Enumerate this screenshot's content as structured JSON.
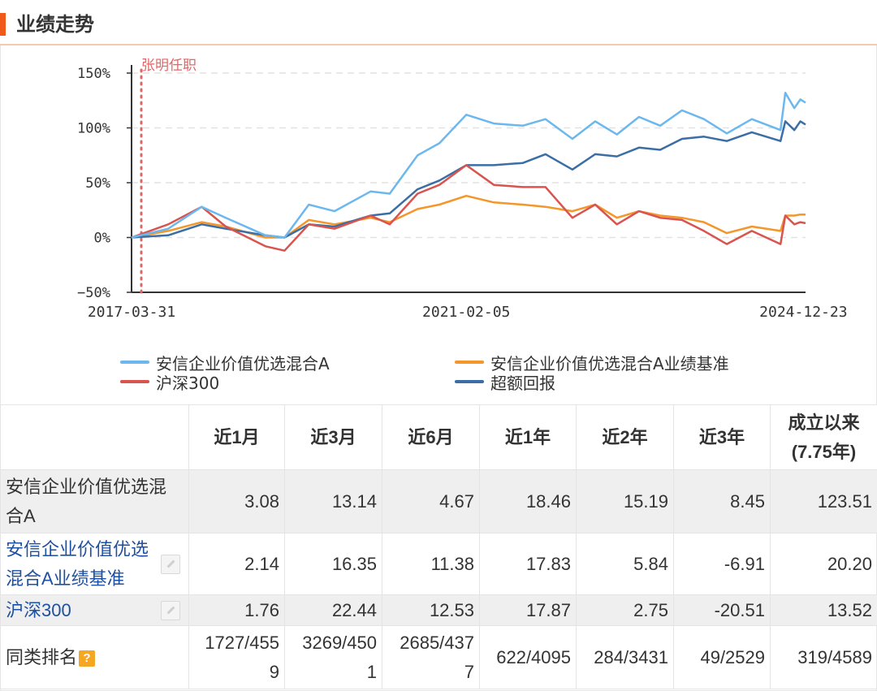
{
  "section_title": "业绩走势",
  "chart_data": {
    "type": "line",
    "x_ticks": [
      "2017-03-31",
      "2021-02-05",
      "2024-12-23"
    ],
    "x_range": [
      "2017-03-31",
      "2025-01-01"
    ],
    "ylim": [
      -50,
      150
    ],
    "y_ticks": [
      -50,
      0,
      50,
      100,
      150
    ],
    "y_tick_labels": [
      "−50%",
      "0%",
      "50%",
      "100%",
      "150%"
    ],
    "annotation": {
      "label": "张明任职",
      "x": "2017-03-31",
      "color": "#e06666"
    },
    "grid": "horizontal dashed",
    "series": [
      {
        "name": "安信企业价值优选混合A",
        "color": "#6cb8ee",
        "x": [
          "2017-03-31",
          "2017-09-01",
          "2018-01-20",
          "2018-05-01",
          "2018-10-15",
          "2019-01-03",
          "2019-04-15",
          "2019-08-01",
          "2019-12-31",
          "2020-03-20",
          "2020-07-15",
          "2020-10-15",
          "2021-02-05",
          "2021-06-01",
          "2021-10-01",
          "2022-01-04",
          "2022-04-27",
          "2022-08-01",
          "2022-10-31",
          "2023-02-01",
          "2023-05-01",
          "2023-08-01",
          "2023-11-01",
          "2024-02-05",
          "2024-05-20",
          "2024-09-18",
          "2024-10-08",
          "2024-11-15",
          "2024-12-10",
          "2025-01-01"
        ],
        "values": [
          0,
          8,
          28,
          18,
          2,
          0,
          30,
          24,
          42,
          40,
          75,
          86,
          112,
          104,
          102,
          108,
          90,
          106,
          94,
          110,
          102,
          116,
          108,
          95,
          108,
          98,
          132,
          118,
          126,
          123
        ]
      },
      {
        "name": "安信企业价值优选混合A业绩基准",
        "color": "#f5962a",
        "x": [
          "2017-03-31",
          "2017-09-01",
          "2018-01-20",
          "2018-05-01",
          "2018-10-15",
          "2019-01-03",
          "2019-04-15",
          "2019-08-01",
          "2019-12-31",
          "2020-03-20",
          "2020-07-15",
          "2020-10-15",
          "2021-02-05",
          "2021-06-01",
          "2021-10-01",
          "2022-01-04",
          "2022-04-27",
          "2022-08-01",
          "2022-10-31",
          "2023-02-01",
          "2023-05-01",
          "2023-08-01",
          "2023-11-01",
          "2024-02-05",
          "2024-05-20",
          "2024-09-18",
          "2024-10-08",
          "2024-11-15",
          "2024-12-10",
          "2025-01-01"
        ],
        "values": [
          0,
          6,
          14,
          10,
          0,
          0,
          16,
          12,
          18,
          14,
          26,
          30,
          38,
          32,
          30,
          28,
          24,
          30,
          18,
          24,
          20,
          18,
          14,
          4,
          10,
          6,
          20,
          20,
          21,
          21
        ]
      },
      {
        "name": "沪深300",
        "color": "#d9534f",
        "x": [
          "2017-03-31",
          "2017-09-01",
          "2018-01-20",
          "2018-05-01",
          "2018-10-15",
          "2019-01-03",
          "2019-04-15",
          "2019-08-01",
          "2019-12-31",
          "2020-03-20",
          "2020-07-15",
          "2020-10-15",
          "2021-02-05",
          "2021-06-01",
          "2021-10-01",
          "2022-01-04",
          "2022-04-27",
          "2022-08-01",
          "2022-10-31",
          "2023-02-01",
          "2023-05-01",
          "2023-08-01",
          "2023-11-01",
          "2024-02-05",
          "2024-05-20",
          "2024-09-18",
          "2024-10-08",
          "2024-11-15",
          "2024-12-10",
          "2025-01-01"
        ],
        "values": [
          0,
          12,
          28,
          10,
          -8,
          -12,
          12,
          8,
          20,
          12,
          40,
          48,
          66,
          48,
          46,
          46,
          18,
          30,
          12,
          24,
          18,
          16,
          6,
          -6,
          6,
          -6,
          20,
          12,
          14,
          13
        ]
      },
      {
        "name": "超额回报",
        "color": "#3a6ea5",
        "x": [
          "2017-03-31",
          "2017-09-01",
          "2018-01-20",
          "2018-05-01",
          "2018-10-15",
          "2019-01-03",
          "2019-04-15",
          "2019-08-01",
          "2019-12-31",
          "2020-03-20",
          "2020-07-15",
          "2020-10-15",
          "2021-02-05",
          "2021-06-01",
          "2021-10-01",
          "2022-01-04",
          "2022-04-27",
          "2022-08-01",
          "2022-10-31",
          "2023-02-01",
          "2023-05-01",
          "2023-08-01",
          "2023-11-01",
          "2024-02-05",
          "2024-05-20",
          "2024-09-18",
          "2024-10-08",
          "2024-11-15",
          "2024-12-10",
          "2025-01-01"
        ],
        "values": [
          0,
          2,
          12,
          8,
          2,
          0,
          12,
          10,
          20,
          22,
          44,
          52,
          66,
          66,
          68,
          76,
          62,
          76,
          74,
          82,
          80,
          90,
          92,
          88,
          96,
          88,
          106,
          98,
          106,
          103
        ]
      }
    ]
  },
  "legend": [
    {
      "label": "安信企业价值优选混合A",
      "color": "#6cb8ee"
    },
    {
      "label": "安信企业价值优选混合A业绩基准",
      "color": "#f5962a"
    },
    {
      "label": "沪深300",
      "color": "#d9534f"
    },
    {
      "label": "超额回报",
      "color": "#3a6ea5"
    }
  ],
  "table": {
    "headers": [
      "近1月",
      "近3月",
      "近6月",
      "近1年",
      "近2年",
      "近3年"
    ],
    "header_since": [
      "成立以来",
      "(7.75年)"
    ],
    "rows": [
      {
        "name_lines": [
          "安信企业价值优选混",
          "合A"
        ],
        "values": [
          "3.08",
          "13.14",
          "4.67",
          "18.46",
          "15.19",
          "8.45",
          "123.51"
        ]
      },
      {
        "name_lines": [
          "安信企业价值优选",
          "混合A业绩基准"
        ],
        "values": [
          "2.14",
          "16.35",
          "11.38",
          "17.83",
          "5.84",
          "-6.91",
          "20.20"
        ]
      },
      {
        "name_lines": [
          "沪深300"
        ],
        "values": [
          "1.76",
          "22.44",
          "12.53",
          "17.87",
          "2.75",
          "-20.51",
          "13.52"
        ]
      }
    ],
    "rank_label": "同类排名",
    "rank_help_icon": "question-icon",
    "rank_help_glyph": "?",
    "rank_values": [
      [
        "1727/455",
        "9"
      ],
      [
        "3269/450",
        "1"
      ],
      [
        "2685/437",
        "7"
      ],
      [
        "622/4095"
      ],
      [
        "284/3431"
      ],
      [
        "49/2529"
      ],
      [
        "319/4589"
      ]
    ]
  }
}
